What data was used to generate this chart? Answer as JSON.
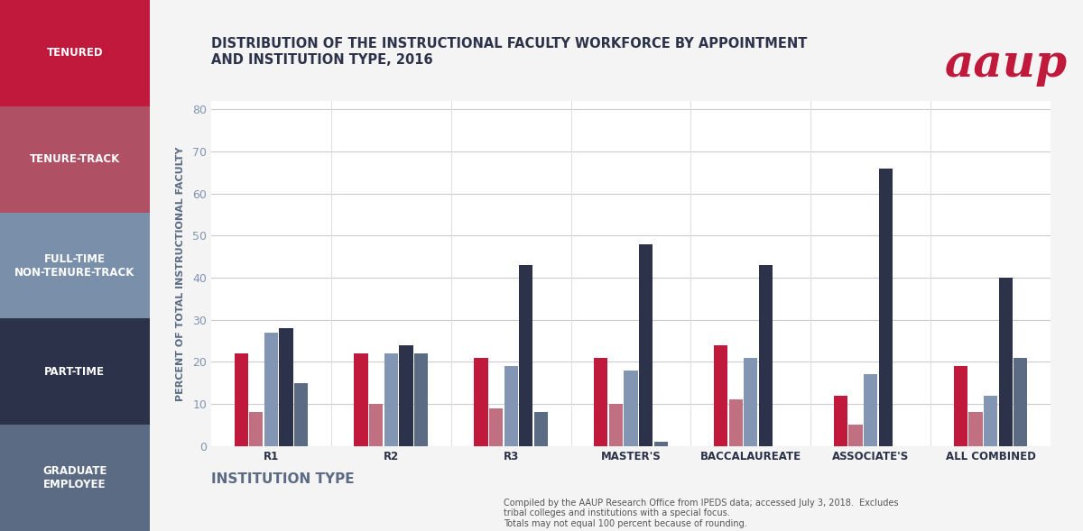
{
  "title": "DISTRIBUTION OF THE INSTRUCTIONAL FACULTY WORKFORCE BY APPOINTMENT\nAND INSTITUTION TYPE, 2016",
  "ylabel": "PERCENT OF TOTAL INSTRUCTIONAL FACULTY",
  "xlabel": "INSTITUTION TYPE",
  "footnote": "Compiled by the AAUP Research Office from IPEDS data; accessed July 3, 2018.  Excludes\ntribal colleges and institutions with a special focus.\nTotals may not equal 100 percent because of rounding.",
  "categories": [
    "R1",
    "R2",
    "R3",
    "MASTER'S",
    "BACCALAUREATE",
    "ASSOCIATE'S",
    "ALL COMBINED"
  ],
  "series": {
    "Tenured": [
      22,
      22,
      21,
      21,
      24,
      12,
      19
    ],
    "Tenure-Track": [
      8,
      10,
      9,
      10,
      11,
      5,
      8
    ],
    "Full-Time Non-Tenure": [
      27,
      22,
      19,
      18,
      21,
      17,
      12
    ],
    "Part-Time": [
      28,
      24,
      43,
      48,
      43,
      66,
      40
    ],
    "Graduate Employee": [
      15,
      22,
      8,
      1,
      0,
      0,
      21
    ]
  },
  "bar_colors": {
    "Tenured": "#c1193c",
    "Tenure-Track": "#c07080",
    "Full-Time Non-Tenure": "#8295b2",
    "Part-Time": "#2b3249",
    "Graduate Employee": "#5b6b84"
  },
  "sidebar_colors": [
    "#c1193c",
    "#b05065",
    "#7a8faa",
    "#2b3249",
    "#5b6b84"
  ],
  "sidebar_labels": [
    "TENURED",
    "TENURE-TRACK",
    "FULL-TIME\nNON-TENURE-TRACK",
    "PART-TIME",
    "GRADUATE\nEMPLOYEE"
  ],
  "ylim": [
    0,
    82
  ],
  "yticks": [
    0,
    10,
    20,
    30,
    40,
    50,
    60,
    70,
    80
  ],
  "bg_color": "#f4f4f4",
  "plot_bg_color": "#ffffff",
  "title_color": "#2b3249",
  "axis_label_color": "#5b6b84",
  "tick_color": "#8295b2",
  "grid_color": "#cccccc",
  "aaup_color": "#c1193c"
}
